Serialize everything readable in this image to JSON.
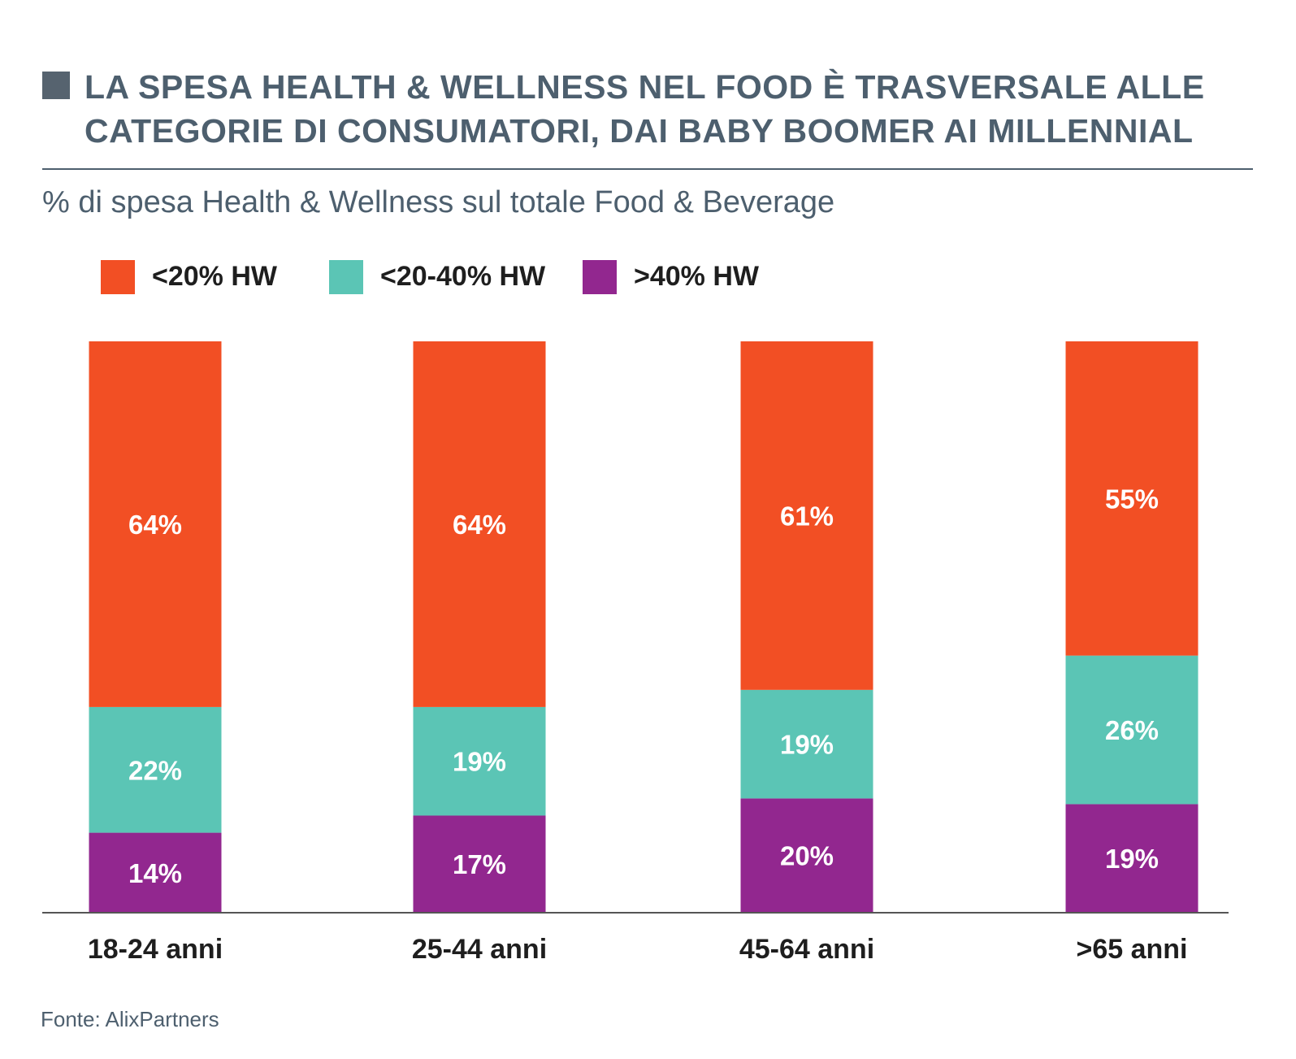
{
  "title_lines": [
    "LA SPESA HEALTH & WELLNESS NEL FOOD È TRASVERSALE ALLE",
    "CATEGORIE DI CONSUMATORI, DAI BABY BOOMER AI MILLENNIAL"
  ],
  "subtitle": "% di spesa Health & Wellness sul totale Food & Beverage",
  "source": "Fonte: AlixPartners",
  "colors": {
    "text": "#4d5f6e",
    "marker": "#56636f",
    "axis": "#555555",
    "bar_label": "#ffffff",
    "category_label": "#1e1e1e"
  },
  "chart_data": {
    "type": "bar",
    "stacked": true,
    "categories": [
      "18-24 anni",
      "25-44 anni",
      "45-64 anni",
      ">65 anni"
    ],
    "series": [
      {
        "name": ">40% HW",
        "color": "#92278f",
        "values": [
          14,
          17,
          20,
          19
        ]
      },
      {
        "name": "<20-40% HW",
        "color": "#5bc5b5",
        "values": [
          22,
          19,
          19,
          26
        ]
      },
      {
        "name": "<20% HW",
        "color": "#f24f24",
        "values": [
          64,
          64,
          61,
          55
        ]
      }
    ],
    "legend_order": [
      "<20% HW",
      "<20-40% HW",
      ">40% HW"
    ],
    "value_suffix": "%",
    "ylim": [
      0,
      100
    ],
    "grid": false,
    "legend_position": "top-left"
  }
}
